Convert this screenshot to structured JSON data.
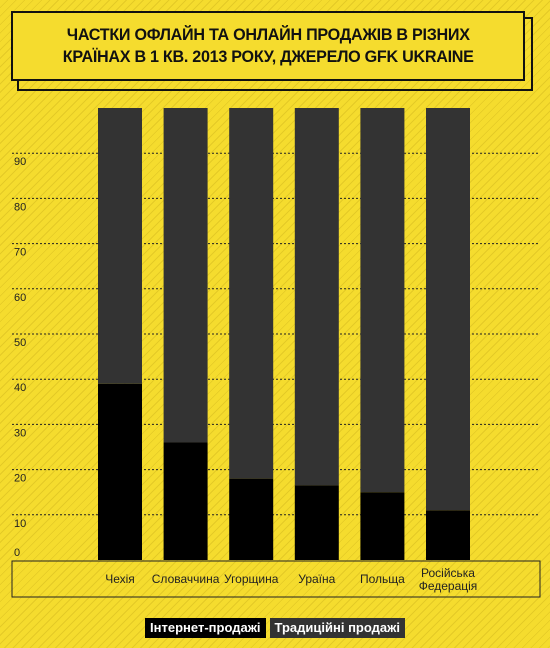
{
  "title": "ЧАСТКИ ОФЛАЙН ТА ОНЛАЙН ПРОДАЖІВ В РІЗНИХ\nКРАЇНАХ В 1 КВ. 2013 РОКУ, ДЖЕРЕЛО GFK UKRAINE",
  "colors": {
    "background": "#f5dc2e",
    "online": "#000000",
    "offline": "#333333",
    "grid": "#222222"
  },
  "chart_data": {
    "type": "bar",
    "stacked": true,
    "title": "ЧАСТКИ ОФЛАЙН ТА ОНЛАЙН ПРОДАЖІВ В РІЗНИХ КРАЇНАХ В 1 КВ. 2013 РОКУ, ДЖЕРЕЛО GFK UKRAINE",
    "categories": [
      "Чехія",
      "Словаччина",
      "Угорщина",
      "Ураїна",
      "Польща",
      "Російська Федерація"
    ],
    "series": [
      {
        "name": "Інтернет-продажі",
        "values": [
          39,
          26,
          18,
          16.5,
          15,
          11
        ]
      },
      {
        "name": "Традиційні продажі",
        "values": [
          61,
          74,
          82,
          83.5,
          85,
          89
        ]
      }
    ],
    "yticks": [
      0,
      10,
      20,
      30,
      40,
      50,
      60,
      70,
      80,
      90
    ],
    "ylim": [
      0,
      100
    ],
    "grid": true,
    "legend": "bottom"
  }
}
